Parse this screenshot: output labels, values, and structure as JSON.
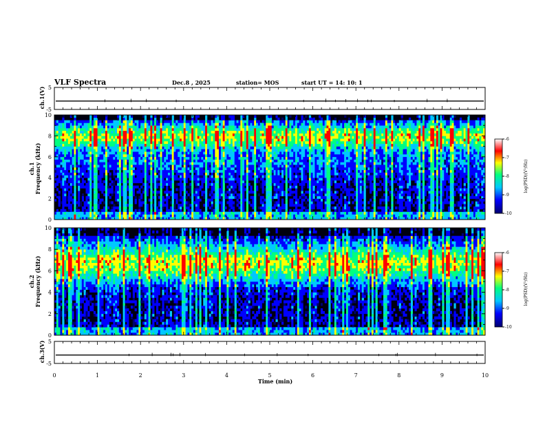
{
  "header": {
    "title": "VLF Spectra",
    "date": "Dec.8  , 2025",
    "station": "station= MOS",
    "start_ut": "start  UT =   14: 10: 1"
  },
  "chart_data": [
    {
      "type": "line",
      "name": "ch1-voltage",
      "ylabel": "ch.1(V)",
      "ylim": [
        -5,
        5
      ],
      "y_ticks": [
        "5",
        "-5"
      ],
      "baseline_value": -1.2
    },
    {
      "type": "heatmap",
      "name": "ch1-spectrogram",
      "ylabel_channel": "ch.1",
      "ylabel": "Frequency (kHz)",
      "ylim": [
        0,
        10
      ],
      "y_ticks": [
        "0",
        "2",
        "4",
        "6",
        "8",
        "10"
      ],
      "colorbar": {
        "label": "log(PSD)(V²/Hz)",
        "range": [
          -10,
          -6
        ],
        "ticks": [
          "-6",
          "-7",
          "-8",
          "-9",
          "-10"
        ]
      }
    },
    {
      "type": "heatmap",
      "name": "ch2-spectrogram",
      "ylabel_channel": "ch.2",
      "ylabel": "Frequency (kHz)",
      "ylim": [
        0,
        10
      ],
      "y_ticks": [
        "0",
        "2",
        "4",
        "6",
        "8",
        "10"
      ],
      "colorbar": {
        "label": "log(PSD)(V²/Hz)",
        "range": [
          -10,
          -6
        ],
        "ticks": [
          "-6",
          "-7",
          "-8",
          "-9",
          "-10"
        ]
      }
    },
    {
      "type": "line",
      "name": "ch3-voltage",
      "ylabel": "ch.3(V)",
      "ylim": [
        -5,
        5
      ],
      "y_ticks": [
        "5",
        "-5"
      ],
      "baseline_value": -1.2
    }
  ],
  "x_axis": {
    "label": "Time  (min)",
    "range": [
      0,
      10
    ],
    "ticks": [
      "0",
      "1",
      "2",
      "3",
      "4",
      "5",
      "6",
      "7",
      "8",
      "9",
      "10"
    ]
  },
  "colormap": [
    "#00006e",
    "#0000ff",
    "#00c8ff",
    "#00ff80",
    "#ffff00",
    "#ff0000",
    "#ffffff"
  ]
}
